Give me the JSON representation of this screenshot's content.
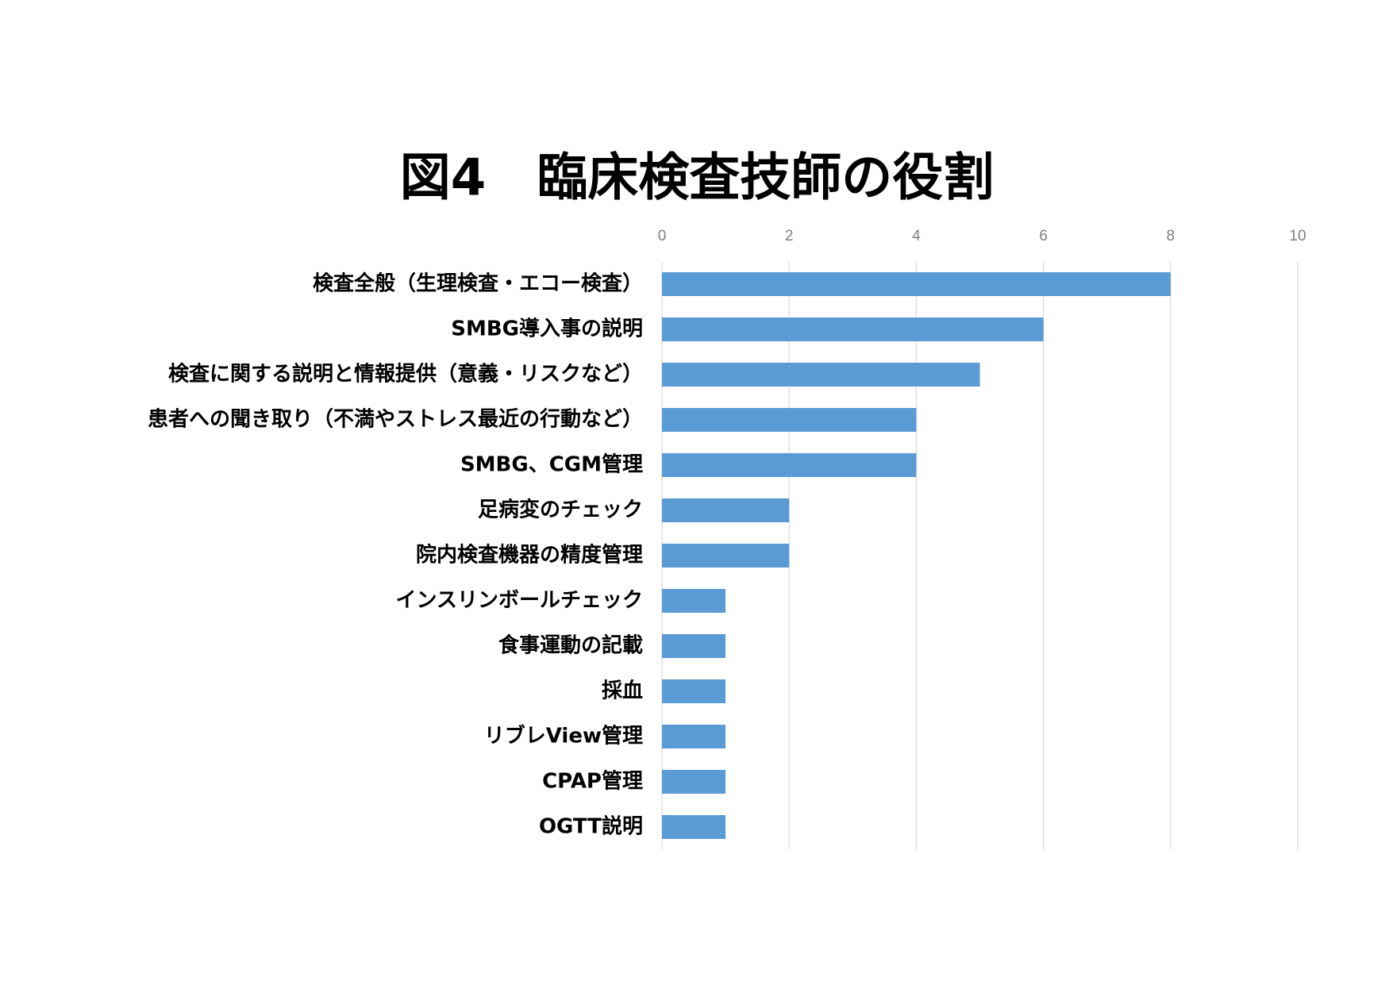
{
  "chart_data": {
    "type": "barh",
    "title": "図4　臨床検査技師の役割",
    "categories": [
      "検査全般（生理検査・エコー検査）",
      "SMBG導入事の説明",
      "検査に関する説明と情報提供（意義・リスクなど）",
      "患者への聞き取り（不満やストレス最近の行動など）",
      "SMBG、CGM管理",
      "足病変のチェック",
      "院内検査機器の精度管理",
      "インスリンボールチェック",
      "食事運動の記載",
      "採血",
      "リブレView管理",
      "CPAP管理",
      "OGTT説明"
    ],
    "values": [
      8,
      6,
      5,
      4,
      4,
      2,
      2,
      1,
      1,
      1,
      1,
      1,
      1
    ],
    "color": "#5b9bd5",
    "xlim": [
      0,
      10
    ],
    "xticks": [
      0,
      2,
      4,
      6,
      8,
      10
    ],
    "grid": true
  }
}
